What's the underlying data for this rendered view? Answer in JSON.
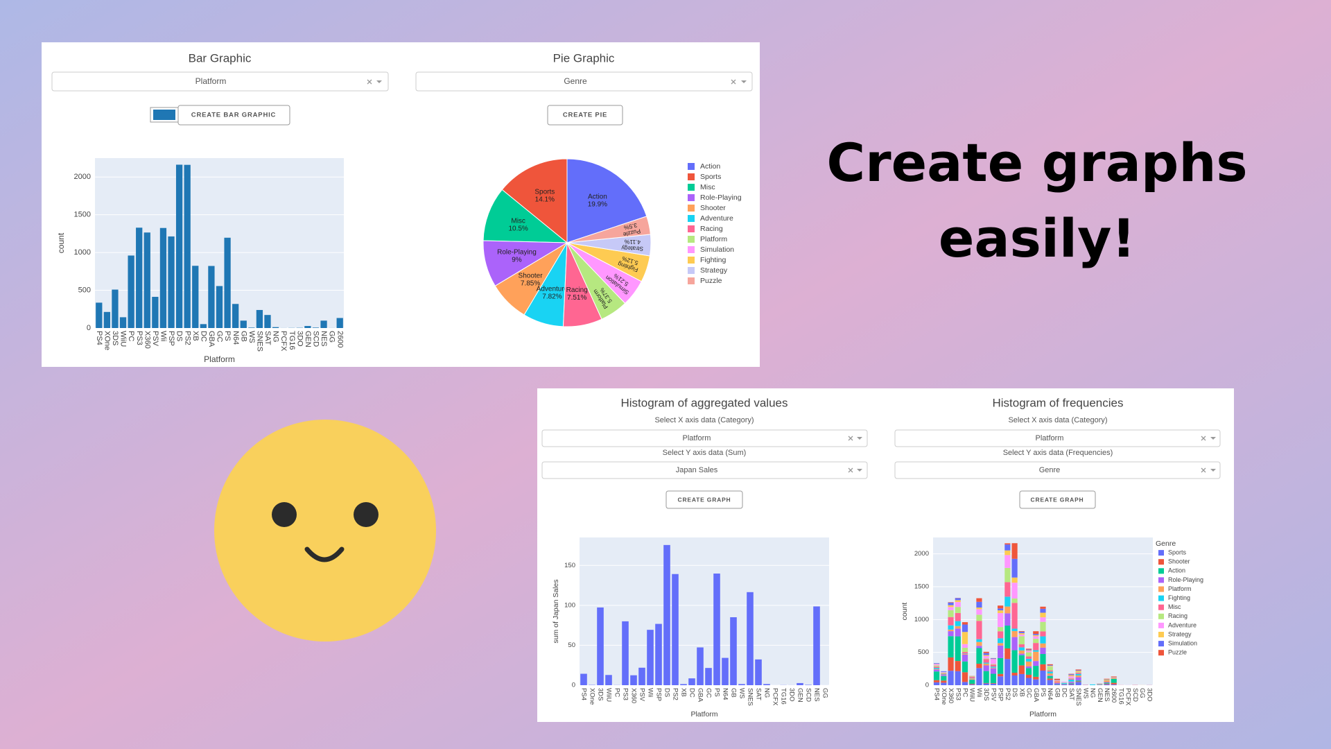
{
  "headline": [
    "Create graphs",
    "easily!"
  ],
  "controls": [
    {
      "dropdown": "Platform",
      "button": "CREATE BAR GRAPHIC",
      "swatch_color": "#1f77b4"
    },
    {
      "dropdown": "Genre",
      "button": "CREATE PIE"
    },
    {
      "x_prompt": "Select X axis data (Category)",
      "x_dropdown": "Platform",
      "y_prompt": "Select Y axis data (Sum)",
      "y_dropdown": "Japan Sales",
      "button": "CREATE GRAPH"
    },
    {
      "x_prompt": "Select X axis data (Category)",
      "x_dropdown": "Platform",
      "y_prompt": "Select Y axis data (Frequencies)",
      "y_dropdown": "Genre",
      "button": "CREATE GRAPH"
    }
  ],
  "chart_data": [
    {
      "type": "bar",
      "title": "Bar Graphic",
      "xlabel": "Platform",
      "ylabel": "count",
      "color": "#1f77b4",
      "grid": true,
      "categories": [
        "PS4",
        "XOne",
        "3DS",
        "WiiU",
        "PC",
        "PS3",
        "X360",
        "PSV",
        "Wii",
        "PSP",
        "DS",
        "PS2",
        "XB",
        "DC",
        "GBA",
        "GC",
        "PS",
        "N64",
        "GB",
        "WS",
        "SNES",
        "SAT",
        "NG",
        "PCFX",
        "TG16",
        "3DO",
        "GEN",
        "SCD",
        "NES",
        "GG",
        "2600"
      ],
      "values": [
        336,
        213,
        509,
        143,
        960,
        1329,
        1265,
        413,
        1325,
        1213,
        2163,
        2161,
        824,
        52,
        822,
        556,
        1196,
        319,
        98,
        6,
        239,
        173,
        12,
        1,
        2,
        3,
        27,
        6,
        98,
        1,
        133
      ],
      "ylim": [
        0,
        2250
      ],
      "yticks": [
        0,
        500,
        1000,
        1500,
        2000
      ]
    },
    {
      "type": "pie",
      "title": "Pie Graphic",
      "categories": [
        "Action",
        "Sports",
        "Misc",
        "Role-Playing",
        "Shooter",
        "Adventure",
        "Racing",
        "Platform",
        "Simulation",
        "Fighting",
        "Strategy",
        "Puzzle"
      ],
      "values": [
        19.9,
        14.1,
        10.5,
        9,
        7.85,
        7.82,
        7.51,
        5.37,
        5.21,
        5.12,
        4.11,
        3.5
      ],
      "value_labels": [
        "19.9%",
        "14.1%",
        "10.5%",
        "9%",
        "7.85%",
        "7.82%",
        "7.51%",
        "5.37%",
        "5.21%",
        "5.12%",
        "4.11%",
        "3.5%"
      ],
      "colors": [
        "#636efa",
        "#ef553b",
        "#00cc96",
        "#ab63fa",
        "#ffa15a",
        "#19d3f3",
        "#ff6692",
        "#b6e880",
        "#ff97ff",
        "#fecb52",
        "#c6c9f7",
        "#f6a59c"
      ]
    },
    {
      "type": "bar",
      "title": "Histogram of aggregated values",
      "xlabel": "Platform",
      "ylabel": "sum of Japan Sales",
      "color": "#636efa",
      "grid": true,
      "categories": [
        "PS4",
        "XOne",
        "3DS",
        "WiiU",
        "PC",
        "PS3",
        "X360",
        "PSV",
        "Wii",
        "PSP",
        "DS",
        "PS2",
        "XB",
        "DC",
        "GBA",
        "GC",
        "PS",
        "N64",
        "GB",
        "WS",
        "SNES",
        "SAT",
        "NG",
        "PCFX",
        "TG16",
        "3DO",
        "GEN",
        "SCD",
        "NES",
        "GG"
      ],
      "values": [
        14.3,
        0.34,
        97.35,
        12.79,
        0.17,
        79.99,
        12.43,
        21.91,
        69.35,
        76.79,
        175.57,
        139.2,
        1.38,
        8.56,
        47.33,
        21.58,
        139.82,
        34.22,
        85.12,
        1.42,
        116.55,
        32.26,
        1.44,
        0.03,
        0.16,
        0.1,
        2.67,
        0.45,
        98.65,
        0.04
      ],
      "ylim": [
        0,
        185
      ],
      "yticks": [
        0,
        50,
        100,
        150
      ]
    },
    {
      "type": "bar",
      "title": "Histogram of frequencies",
      "xlabel": "Platform",
      "ylabel": "count",
      "legend_title": "Genre",
      "stacked": true,
      "grid": true,
      "categories": [
        "PS4",
        "XOne",
        "X360",
        "PS3",
        "PC",
        "WiiU",
        "Wii",
        "3DS",
        "PSV",
        "PSP",
        "PS2",
        "DS",
        "XB",
        "GC",
        "GBA",
        "PS",
        "N64",
        "GB",
        "DC",
        "SAT",
        "SNES",
        "WS",
        "NG",
        "GEN",
        "NES",
        "2600",
        "TG16",
        "PCFX",
        "SCD",
        "GG",
        "3DO"
      ],
      "series": [
        {
          "name": "Sports",
          "color": "#636efa",
          "values": [
            43,
            38,
            220,
            213,
            49,
            10,
            261,
            26,
            24,
            135,
            400,
            148,
            170,
            111,
            88,
            222,
            80,
            9,
            10,
            16,
            49,
            0,
            1,
            3,
            14,
            12,
            0,
            0,
            0,
            0,
            0
          ]
        },
        {
          "name": "Shooter",
          "color": "#ef553b",
          "values": [
            34,
            33,
            203,
            156,
            148,
            10,
            66,
            7,
            8,
            37,
            160,
            42,
            132,
            48,
            40,
            96,
            22,
            1,
            3,
            7,
            10,
            0,
            0,
            1,
            10,
            24,
            1,
            0,
            0,
            0,
            0
          ]
        },
        {
          "name": "Action",
          "color": "#00cc96",
          "values": [
            132,
            68,
            324,
            375,
            165,
            63,
            238,
            182,
            142,
            241,
            348,
            343,
            155,
            101,
            167,
            157,
            38,
            6,
            3,
            8,
            13,
            0,
            0,
            3,
            13,
            61,
            0,
            0,
            0,
            0,
            0
          ]
        },
        {
          "name": "Role-Playing",
          "color": "#ab63fa",
          "values": [
            28,
            14,
            76,
            119,
            104,
            4,
            35,
            86,
            83,
            191,
            187,
            200,
            23,
            27,
            73,
            97,
            9,
            21,
            4,
            19,
            50,
            4,
            0,
            3,
            11,
            0,
            0,
            1,
            1,
            0,
            0
          ]
        },
        {
          "name": "Platform",
          "color": "#ffa15a",
          "values": [
            10,
            4,
            24,
            37,
            10,
            16,
            58,
            28,
            10,
            37,
            103,
            92,
            49,
            73,
            142,
            64,
            30,
            19,
            2,
            5,
            26,
            0,
            0,
            7,
            28,
            9,
            0,
            0,
            1,
            1,
            0
          ]
        },
        {
          "name": "Fighting",
          "color": "#19d3f3",
          "values": [
            17,
            7,
            65,
            76,
            6,
            6,
            42,
            14,
            16,
            74,
            150,
            36,
            48,
            42,
            23,
            108,
            29,
            0,
            12,
            31,
            25,
            0,
            11,
            5,
            4,
            2,
            0,
            0,
            0,
            0,
            0
          ]
        },
        {
          "name": "Misc",
          "color": "#ff6692",
          "values": [
            19,
            14,
            126,
            124,
            24,
            21,
            280,
            53,
            31,
            106,
            222,
            393,
            46,
            36,
            110,
            76,
            18,
            8,
            0,
            16,
            17,
            0,
            0,
            1,
            1,
            5,
            0,
            0,
            0,
            0,
            0
          ]
        },
        {
          "name": "Racing",
          "color": "#b6e880",
          "values": [
            19,
            14,
            105,
            92,
            64,
            8,
            94,
            11,
            10,
            65,
            216,
            67,
            123,
            63,
            64,
            145,
            57,
            2,
            6,
            7,
            9,
            0,
            0,
            1,
            6,
            6,
            0,
            0,
            1,
            0,
            0
          ]
        },
        {
          "name": "Adventure",
          "color": "#ff97ff",
          "values": [
            19,
            10,
            47,
            75,
            56,
            1,
            84,
            37,
            73,
            212,
            196,
            240,
            26,
            20,
            38,
            69,
            4,
            5,
            11,
            26,
            2,
            0,
            0,
            2,
            1,
            2,
            1,
            0,
            2,
            0,
            1
          ]
        },
        {
          "name": "Strategy",
          "color": "#fecb52",
          "values": [
            5,
            0,
            28,
            28,
            185,
            2,
            25,
            15,
            3,
            42,
            71,
            79,
            21,
            11,
            18,
            70,
            10,
            4,
            0,
            18,
            18,
            1,
            0,
            0,
            0,
            0,
            0,
            0,
            0,
            0,
            0
          ]
        },
        {
          "name": "Simulation",
          "color": "#636efa",
          "values": [
            10,
            11,
            41,
            31,
            113,
            1,
            87,
            30,
            10,
            29,
            90,
            285,
            22,
            11,
            18,
            60,
            9,
            5,
            1,
            14,
            9,
            0,
            0,
            0,
            0,
            1,
            0,
            0,
            0,
            0,
            1
          ]
        },
        {
          "name": "Puzzle",
          "color": "#ef553b",
          "values": [
            0,
            0,
            6,
            3,
            36,
            1,
            55,
            20,
            3,
            44,
            18,
            238,
            9,
            13,
            41,
            32,
            13,
            18,
            0,
            6,
            11,
            1,
            0,
            1,
            10,
            11,
            0,
            0,
            1,
            0,
            1
          ]
        }
      ],
      "ylim": [
        0,
        2250
      ],
      "yticks": [
        0,
        500,
        1000,
        1500,
        2000
      ]
    }
  ]
}
